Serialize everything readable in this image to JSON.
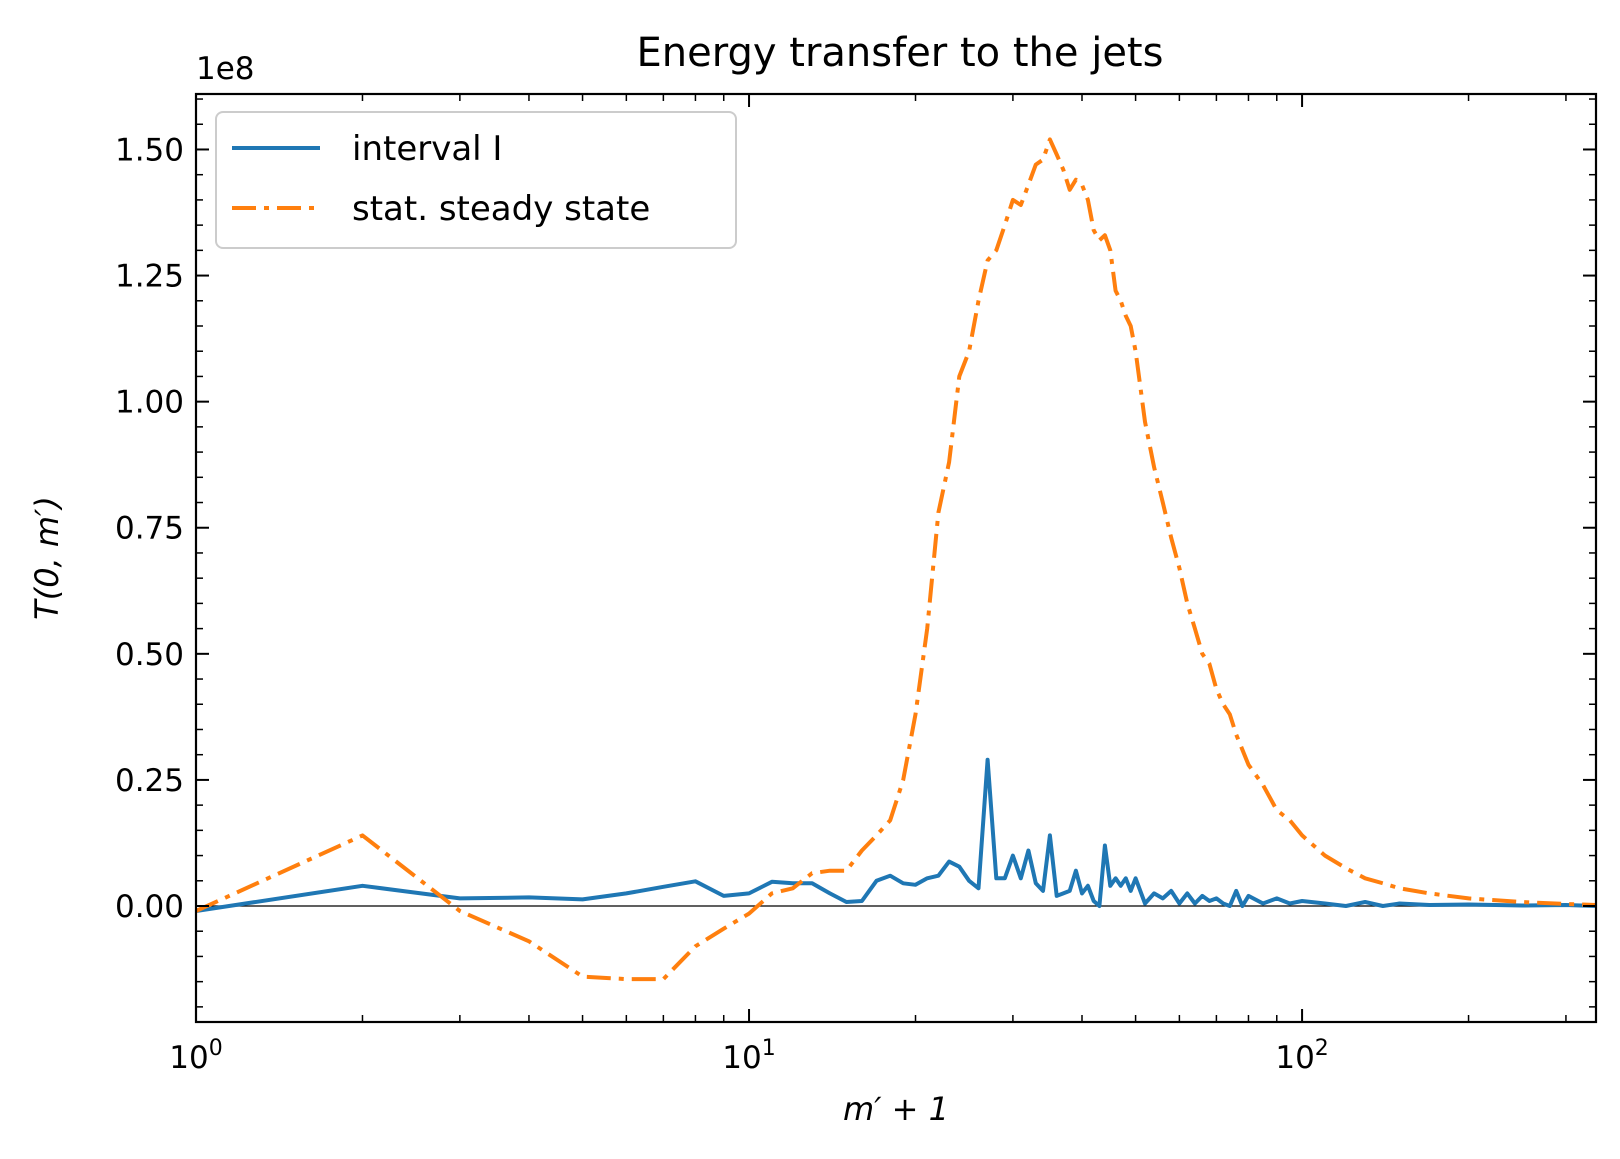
{
  "chart_data": {
    "type": "line",
    "title": "Energy transfer to the jets",
    "xlabel": "m′ + 1",
    "ylabel": "T(0, m′)",
    "xscale": "log",
    "xlim": [
      1,
      340
    ],
    "ylim": [
      -0.23,
      1.61
    ],
    "y_multiplier_label": "1e8",
    "x_ticks": [
      {
        "value": 1,
        "base": "10",
        "exp": "0"
      },
      {
        "value": 10,
        "base": "10",
        "exp": "1"
      },
      {
        "value": 100,
        "base": "10",
        "exp": "2"
      }
    ],
    "y_ticks": [
      {
        "value": 0.0,
        "label": "0.00"
      },
      {
        "value": 0.25,
        "label": "0.25"
      },
      {
        "value": 0.5,
        "label": "0.50"
      },
      {
        "value": 0.75,
        "label": "0.75"
      },
      {
        "value": 1.0,
        "label": "1.00"
      },
      {
        "value": 1.25,
        "label": "1.25"
      },
      {
        "value": 1.5,
        "label": "1.50"
      }
    ],
    "zero_line": true,
    "legend_position": "upper-left",
    "series": [
      {
        "name": "interval I",
        "color": "#1f77b4",
        "style": "solid",
        "x": [
          1,
          2,
          3,
          4,
          5,
          6,
          7,
          8,
          9,
          10,
          11,
          12,
          13,
          14,
          15,
          16,
          17,
          18,
          19,
          20,
          21,
          22,
          23,
          24,
          25,
          26,
          27,
          28,
          29,
          30,
          31,
          32,
          33,
          34,
          35,
          36,
          37,
          38,
          39,
          40,
          41,
          42,
          43,
          44,
          45,
          46,
          47,
          48,
          49,
          50,
          52,
          54,
          56,
          58,
          60,
          62,
          64,
          66,
          68,
          70,
          72,
          74,
          76,
          78,
          80,
          85,
          90,
          95,
          100,
          110,
          120,
          130,
          140,
          150,
          170,
          200,
          250,
          300,
          340
        ],
        "y": [
          -0.01,
          0.04,
          0.015,
          0.017,
          0.013,
          0.025,
          0.038,
          0.049,
          0.02,
          0.025,
          0.048,
          0.045,
          0.045,
          0.025,
          0.008,
          0.01,
          0.05,
          0.06,
          0.045,
          0.042,
          0.055,
          0.06,
          0.088,
          0.078,
          0.05,
          0.035,
          0.29,
          0.055,
          0.055,
          0.1,
          0.055,
          0.11,
          0.045,
          0.03,
          0.14,
          0.02,
          0.025,
          0.03,
          0.07,
          0.025,
          0.04,
          0.01,
          0.0,
          0.12,
          0.04,
          0.055,
          0.04,
          0.055,
          0.03,
          0.055,
          0.005,
          0.025,
          0.015,
          0.03,
          0.005,
          0.025,
          0.005,
          0.02,
          0.01,
          0.015,
          0.005,
          0.0,
          0.03,
          0.0,
          0.02,
          0.005,
          0.015,
          0.005,
          0.01,
          0.005,
          0.0,
          0.008,
          0.0,
          0.005,
          0.002,
          0.003,
          0.001,
          0.002,
          0.0
        ]
      },
      {
        "name": "stat. steady state",
        "color": "#ff7f0e",
        "style": "dashdot",
        "x": [
          1,
          2,
          3,
          4,
          5,
          6,
          7,
          8,
          9,
          10,
          11,
          12,
          13,
          14,
          15,
          16,
          17,
          18,
          19,
          20,
          21,
          22,
          23,
          24,
          25,
          26,
          27,
          28,
          29,
          30,
          31,
          32,
          33,
          34,
          35,
          36,
          37,
          38,
          39,
          40,
          41,
          42,
          43,
          44,
          45,
          46,
          47,
          48,
          49,
          50,
          52,
          54,
          56,
          58,
          60,
          62,
          64,
          66,
          68,
          70,
          72,
          74,
          76,
          78,
          80,
          85,
          90,
          95,
          100,
          110,
          120,
          130,
          140,
          150,
          170,
          200,
          250,
          300,
          340
        ],
        "y": [
          -0.01,
          0.14,
          -0.01,
          -0.07,
          -0.14,
          -0.145,
          -0.145,
          -0.08,
          -0.045,
          -0.015,
          0.025,
          0.035,
          0.065,
          0.07,
          0.07,
          0.11,
          0.14,
          0.17,
          0.25,
          0.38,
          0.55,
          0.78,
          0.88,
          1.05,
          1.1,
          1.2,
          1.28,
          1.3,
          1.35,
          1.4,
          1.39,
          1.43,
          1.47,
          1.48,
          1.52,
          1.49,
          1.46,
          1.42,
          1.44,
          1.43,
          1.4,
          1.34,
          1.32,
          1.33,
          1.3,
          1.22,
          1.2,
          1.17,
          1.15,
          1.1,
          0.96,
          0.87,
          0.8,
          0.73,
          0.67,
          0.6,
          0.55,
          0.5,
          0.48,
          0.43,
          0.4,
          0.38,
          0.34,
          0.31,
          0.28,
          0.24,
          0.19,
          0.17,
          0.14,
          0.1,
          0.075,
          0.055,
          0.045,
          0.035,
          0.025,
          0.015,
          0.008,
          0.004,
          0.002
        ]
      }
    ]
  }
}
